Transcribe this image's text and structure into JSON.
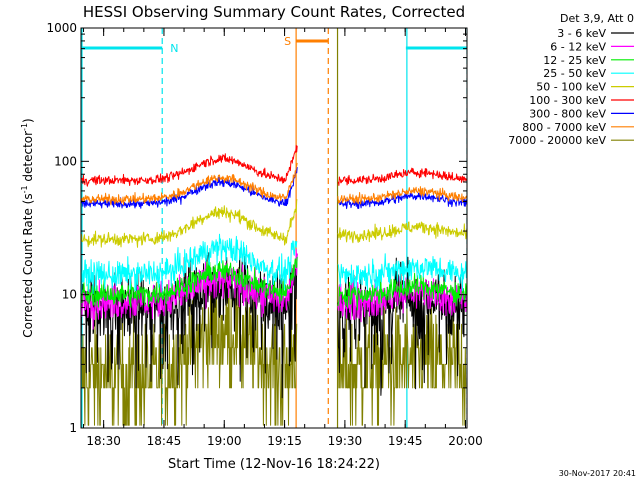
{
  "chart_data": {
    "type": "line",
    "title": "HESSI Observing Summary Count Rates, Corrected",
    "xlabel": "Start Time (12-Nov-16 18:24:22)",
    "ylabel": "Corrected Count Rate (s",
    "ylabel_sup1": "-1",
    "ylabel_mid": " detector",
    "ylabel_sup2": "-1",
    "ylabel_end": ")",
    "yscale": "log",
    "ylim": [
      1,
      1000
    ],
    "xlim_minutes": [
      0,
      96
    ],
    "x_ticks": [
      "18:30",
      "18:45",
      "19:00",
      "19:15",
      "19:30",
      "19:45",
      "20:00"
    ],
    "x_tick_minutes": [
      5.63,
      20.63,
      35.63,
      50.63,
      65.63,
      80.63,
      95.63
    ],
    "y_ticks": [
      "1",
      "10",
      "100",
      "1000"
    ],
    "y_tick_values": [
      1,
      10,
      100,
      1000
    ],
    "legend_title": "Det 3,9, Att 0",
    "legend_position": "outside-right",
    "series": [
      {
        "name": "3 - 6 keV",
        "color": "#000000",
        "profile": "gap",
        "pre": {
          "base": 8,
          "bump": 1.5
        },
        "post": {
          "base": 8
        },
        "noise": 0.35
      },
      {
        "name": "6 - 12 keV",
        "color": "#ff00ff",
        "profile": "gap",
        "pre": {
          "base": 9,
          "bump": 1.4
        },
        "post": {
          "base": 9
        },
        "noise": 0.2
      },
      {
        "name": "12 - 25 keV",
        "color": "#00ee00",
        "profile": "gap",
        "pre": {
          "base": 10,
          "bump": 1.5
        },
        "post": {
          "base": 10
        },
        "noise": 0.12
      },
      {
        "name": "25 - 50 keV",
        "color": "#00ffff",
        "profile": "gap",
        "pre": {
          "base": 14,
          "bump": 1.6
        },
        "post": {
          "base": 14
        },
        "noise": 0.15
      },
      {
        "name": "50 - 100 keV",
        "color": "#cccc00",
        "profile": "gap",
        "pre": {
          "base": 26,
          "bump": 1.6
        },
        "post": {
          "base": 28
        },
        "noise": 0.07
      },
      {
        "name": "100 - 300 keV",
        "color": "#ff0000",
        "profile": "gap",
        "pre": {
          "base": 72,
          "bump": 1.45
        },
        "post": {
          "base": 72
        },
        "noise": 0.05
      },
      {
        "name": "300 - 800 keV",
        "color": "#0000ff",
        "profile": "gap",
        "pre": {
          "base": 48,
          "bump": 1.45
        },
        "post": {
          "base": 48
        },
        "noise": 0.05
      },
      {
        "name": "800 - 7000 keV",
        "color": "#ff7f00",
        "profile": "gap",
        "pre": {
          "base": 52,
          "bump": 1.45
        },
        "post": {
          "base": 52
        },
        "noise": 0.05
      },
      {
        "name": "7000 - 20000 keV",
        "color": "#808000",
        "profile": "gap",
        "pre": {
          "base": 2.5,
          "bump": 2.2
        },
        "post": {
          "base": 2.8
        },
        "noise": 0.6
      }
    ],
    "annotations": [
      {
        "label": "N",
        "color": "#00e5ee"
      },
      {
        "label": "S",
        "color": "#ff7f00"
      }
    ]
  },
  "footer": {
    "date": "30-Nov-2017 20:41"
  }
}
